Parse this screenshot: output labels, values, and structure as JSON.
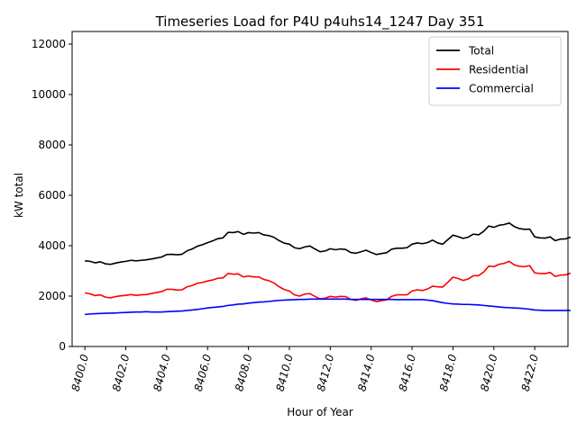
{
  "chart_data": {
    "type": "line",
    "title": "Timeseries Load for P4U p4uhs14_1247  Day 351",
    "xlabel": "Hour of Year",
    "ylabel": "kW total",
    "xlim": [
      8399.375,
      8423.625
    ],
    "ylim": [
      0,
      12500
    ],
    "xticks": [
      8400,
      8402,
      8404,
      8406,
      8408,
      8410,
      8412,
      8414,
      8416,
      8418,
      8420,
      8422
    ],
    "xtick_labels": [
      "8400.0",
      "8402.0",
      "8404.0",
      "8406.0",
      "8408.0",
      "8410.0",
      "8412.0",
      "8414.0",
      "8416.0",
      "8418.0",
      "8420.0",
      "8422.0"
    ],
    "yticks": [
      0,
      2000,
      4000,
      6000,
      8000,
      10000,
      12000
    ],
    "ytick_labels": [
      "0",
      "2000",
      "4000",
      "6000",
      "8000",
      "10000",
      "12000"
    ],
    "legend_position": "top-right",
    "grid": false,
    "x_start": 8400,
    "x_step": 0.25,
    "series": [
      {
        "name": "Total",
        "color": "#000000",
        "values": [
          3400,
          3380,
          3320,
          3360,
          3280,
          3260,
          3310,
          3350,
          3380,
          3420,
          3400,
          3420,
          3440,
          3470,
          3510,
          3550,
          3650,
          3660,
          3640,
          3660,
          3800,
          3870,
          3980,
          4040,
          4120,
          4190,
          4280,
          4310,
          4530,
          4520,
          4560,
          4450,
          4520,
          4500,
          4520,
          4430,
          4400,
          4330,
          4200,
          4100,
          4060,
          3920,
          3880,
          3950,
          3990,
          3870,
          3760,
          3790,
          3880,
          3840,
          3870,
          3850,
          3730,
          3700,
          3760,
          3820,
          3730,
          3650,
          3690,
          3720,
          3860,
          3900,
          3900,
          3920,
          4060,
          4110,
          4080,
          4120,
          4220,
          4110,
          4060,
          4240,
          4420,
          4360,
          4290,
          4340,
          4460,
          4430,
          4570,
          4780,
          4730,
          4810,
          4840,
          4900,
          4760,
          4680,
          4650,
          4660,
          4350,
          4310,
          4300,
          4350,
          4200,
          4260,
          4270,
          4340
        ]
      },
      {
        "name": "Residential",
        "color": "#ff0000",
        "values": [
          2130,
          2090,
          2020,
          2050,
          1960,
          1930,
          1980,
          2010,
          2030,
          2060,
          2030,
          2050,
          2060,
          2100,
          2140,
          2180,
          2270,
          2270,
          2240,
          2250,
          2370,
          2420,
          2510,
          2540,
          2600,
          2640,
          2710,
          2720,
          2900,
          2870,
          2880,
          2760,
          2800,
          2760,
          2760,
          2660,
          2610,
          2520,
          2370,
          2260,
          2200,
          2050,
          2000,
          2080,
          2100,
          1990,
          1890,
          1920,
          1990,
          1960,
          1990,
          1980,
          1870,
          1830,
          1890,
          1930,
          1850,
          1780,
          1820,
          1850,
          1990,
          2050,
          2050,
          2050,
          2200,
          2250,
          2220,
          2280,
          2390,
          2370,
          2360,
          2550,
          2750,
          2700,
          2620,
          2680,
          2810,
          2810,
          2950,
          3190,
          3170,
          3260,
          3300,
          3380,
          3240,
          3180,
          3170,
          3210,
          2920,
          2900,
          2890,
          2940,
          2780,
          2830,
          2840,
          2910
        ]
      },
      {
        "name": "Commercial",
        "color": "#0000ff",
        "values": [
          1270,
          1290,
          1300,
          1310,
          1320,
          1325,
          1330,
          1340,
          1350,
          1360,
          1370,
          1370,
          1380,
          1370,
          1370,
          1370,
          1380,
          1390,
          1400,
          1410,
          1430,
          1450,
          1470,
          1500,
          1530,
          1550,
          1570,
          1590,
          1630,
          1650,
          1680,
          1690,
          1720,
          1740,
          1760,
          1770,
          1790,
          1810,
          1830,
          1840,
          1850,
          1860,
          1870,
          1870,
          1880,
          1880,
          1880,
          1880,
          1880,
          1880,
          1880,
          1880,
          1870,
          1870,
          1870,
          1870,
          1870,
          1870,
          1870,
          1870,
          1870,
          1860,
          1860,
          1860,
          1860,
          1860,
          1860,
          1840,
          1820,
          1780,
          1740,
          1710,
          1690,
          1680,
          1670,
          1670,
          1660,
          1650,
          1630,
          1610,
          1590,
          1570,
          1550,
          1540,
          1530,
          1520,
          1500,
          1480,
          1450,
          1440,
          1430,
          1430,
          1430,
          1430,
          1430,
          1430
        ]
      }
    ]
  }
}
